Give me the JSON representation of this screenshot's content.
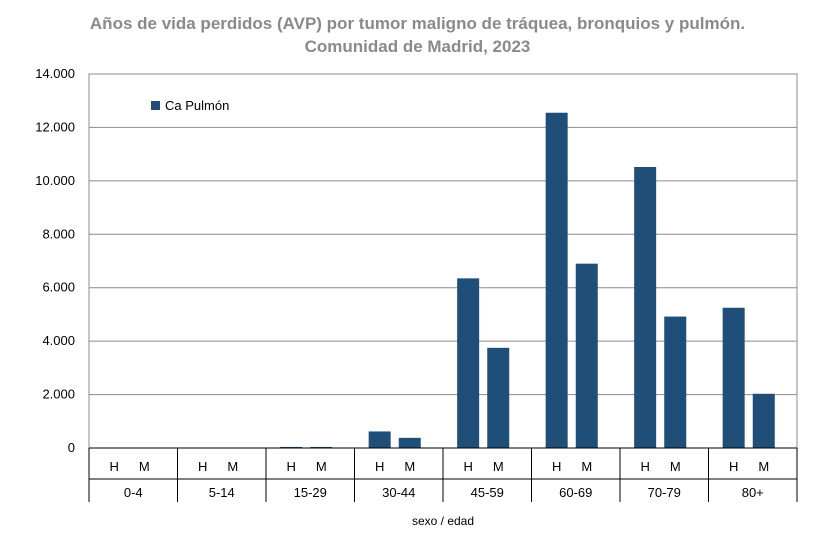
{
  "chart_data": {
    "type": "bar",
    "title": "Años de vida perdidos (AVP) por tumor maligno de tráquea, bronquios y pulmón.",
    "subtitle": "Comunidad de Madrid, 2023",
    "xlabel": "sexo / edad",
    "ylabel": "",
    "ylim": [
      0,
      14000
    ],
    "yticks": [
      0,
      2000,
      4000,
      6000,
      8000,
      10000,
      12000,
      14000
    ],
    "ytick_labels": [
      "0",
      "2.000",
      "4.000",
      "6.000",
      "8.000",
      "10.000",
      "12.000",
      "14.000"
    ],
    "groups": [
      "0-4",
      "5-14",
      "15-29",
      "30-44",
      "45-59",
      "60-69",
      "70-79",
      "80+"
    ],
    "subcategories": [
      "H",
      "M"
    ],
    "grid": true,
    "legend_position": "top-left",
    "series": [
      {
        "name": "Ca Pulmón",
        "color": "#1f4e79",
        "values": [
          [
            0,
            0
          ],
          [
            0,
            0
          ],
          [
            40,
            40
          ],
          [
            620,
            380
          ],
          [
            6350,
            3750
          ],
          [
            12550,
            6900
          ],
          [
            10520,
            4920
          ],
          [
            5250,
            2030
          ]
        ]
      }
    ]
  }
}
